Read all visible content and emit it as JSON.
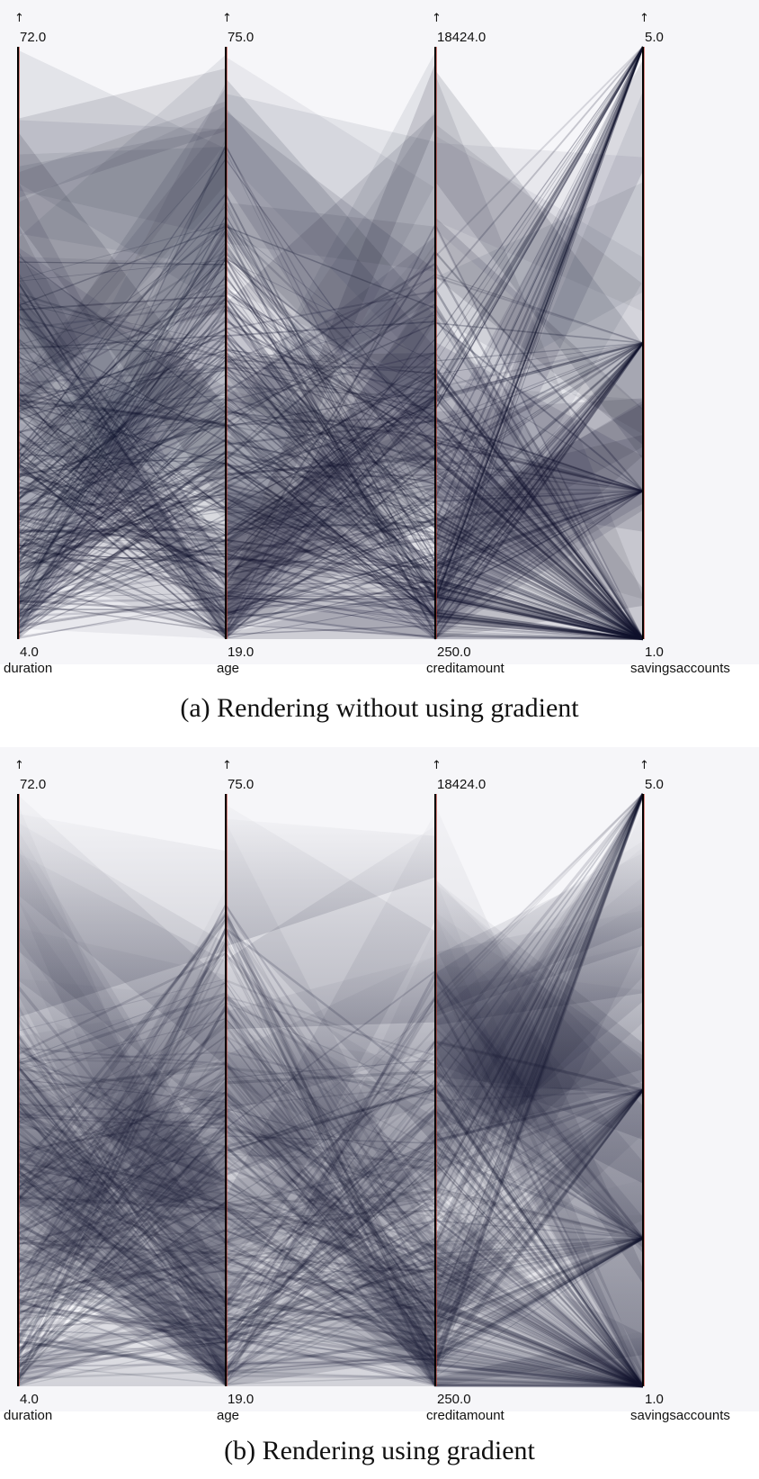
{
  "captions": {
    "a": "(a) Rendering without using gradient",
    "b": "(b) Rendering using gradient"
  },
  "colors": {
    "polyline": "#12142e",
    "axis_line": "#c0392b",
    "background": "#f6f6f9"
  },
  "chart_data": [
    {
      "type": "parallel-coordinates",
      "rendering": "no-gradient",
      "dimensions": [
        {
          "name": "duration",
          "max": "72.0",
          "min": "4.0",
          "range": [
            4,
            72
          ]
        },
        {
          "name": "age",
          "max": "75.0",
          "min": "19.0",
          "range": [
            19,
            75
          ]
        },
        {
          "name": "creditamount",
          "max": "18424.0",
          "min": "250.0",
          "range": [
            250,
            18424
          ]
        },
        {
          "name": "savingsaccounts",
          "max": "5.0",
          "min": "1.0",
          "range": [
            1,
            5
          ]
        }
      ],
      "max_marker": "↑"
    },
    {
      "type": "parallel-coordinates",
      "rendering": "gradient",
      "dimensions": [
        {
          "name": "duration",
          "max": "72.0",
          "min": "4.0",
          "range": [
            4,
            72
          ]
        },
        {
          "name": "age",
          "max": "75.0",
          "min": "19.0",
          "range": [
            19,
            75
          ]
        },
        {
          "name": "creditamount",
          "max": "18424.0",
          "min": "250.0",
          "range": [
            250,
            18424
          ]
        },
        {
          "name": "savingsaccounts",
          "max": "5.0",
          "min": "1.0",
          "range": [
            1,
            5
          ]
        }
      ],
      "max_marker": "↑"
    }
  ]
}
